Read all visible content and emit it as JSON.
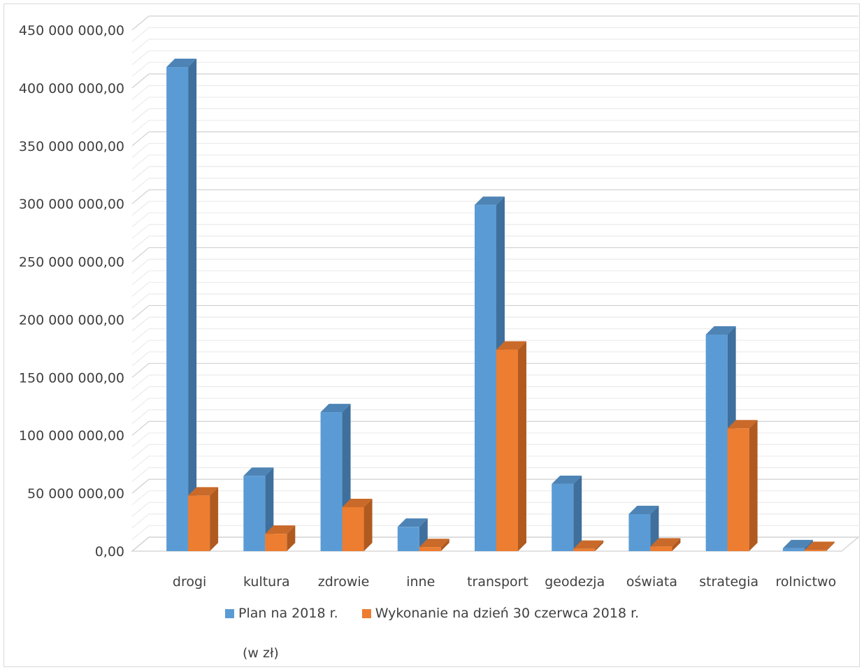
{
  "chart_data": {
    "type": "bar",
    "style": "3d-clustered-column",
    "categories": [
      "drogi",
      "kultura",
      "zdrowie",
      "inne",
      "transport",
      "geodezja",
      "oświata",
      "strategia",
      "rolnictwo"
    ],
    "series": [
      {
        "name": "Plan na 2018 r.",
        "color": "#5b9bd5",
        "side_color": "#3f6f9c",
        "values": [
          418000000,
          65000000,
          120000000,
          21000000,
          299000000,
          58000000,
          32000000,
          187000000,
          2500000
        ]
      },
      {
        "name": "Wykonanie na dzień 30 czerwca 2018 r.",
        "color": "#ed7d31",
        "side_color": "#b05a20",
        "values": [
          48000000,
          15000000,
          38000000,
          3500000,
          174000000,
          2000000,
          4000000,
          106000000,
          1000000
        ]
      }
    ],
    "y_ticks": [
      "450 000 000,00",
      "400 000 000,00",
      "350 000 000,00",
      "300 000 000,00",
      "250 000 000,00",
      "200 000 000,00",
      "150 000 000,00",
      "100 000 000,00",
      "50 000 000,00",
      "0,00"
    ],
    "ylim": [
      0,
      450000000
    ],
    "major_step": 50000000,
    "minor_step": 10000000,
    "grid": true,
    "legend_position": "bottom",
    "note": "(w zł)"
  }
}
